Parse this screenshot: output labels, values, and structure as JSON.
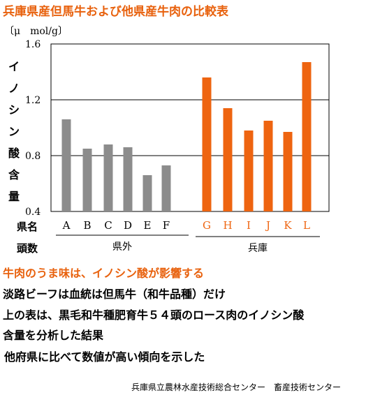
{
  "title": "兵庫県産但馬牛および他県産牛肉の比較表",
  "unit": "〔μ　mol/g〕",
  "ylabel_chars": [
    "イ",
    "ノ",
    "シ",
    "ン",
    "酸",
    "含",
    "量"
  ],
  "row_labels": {
    "prefecture": "県名",
    "count": "頭数"
  },
  "group_labels": {
    "outside": "県外",
    "hyogo": "兵庫"
  },
  "colors": {
    "outside": "#8c8c8c",
    "hyogo": "#ee6410",
    "title": "#e8610d"
  },
  "chart_data": {
    "type": "bar",
    "ylabel": "イノシン酸含量",
    "yunit": "〔μ　mol/g〕",
    "ylim": [
      0.4,
      1.6
    ],
    "yticks": [
      "0.4",
      "0.8",
      "1.2",
      "1.6"
    ],
    "grid": true,
    "categories": [
      "A",
      "B",
      "C",
      "D",
      "E",
      "F",
      "G",
      "H",
      "I",
      "J",
      "K",
      "L"
    ],
    "values": [
      1.06,
      0.85,
      0.88,
      0.86,
      0.66,
      0.73,
      1.36,
      1.14,
      0.98,
      1.05,
      0.97,
      1.47
    ],
    "groups": [
      {
        "name": "県外",
        "categories": [
          "A",
          "B",
          "C",
          "D",
          "E",
          "F"
        ]
      },
      {
        "name": "兵庫",
        "categories": [
          "G",
          "H",
          "I",
          "J",
          "K",
          "L"
        ]
      }
    ]
  },
  "text": {
    "heading": "牛肉のうま味は、イノシン酸が影響する",
    "line1": "淡路ビーフは血統は但馬牛（和牛品種）だけ",
    "line2": "上の表は、黒毛和牛種肥育牛５４頭のロース肉のイノシン酸",
    "line3": "含量を分析した結果",
    "line4": "他府県に比べて数値が高い傾向を示した"
  },
  "footer": "兵庫県立農林水産技術総合センター　畜産技術センター"
}
